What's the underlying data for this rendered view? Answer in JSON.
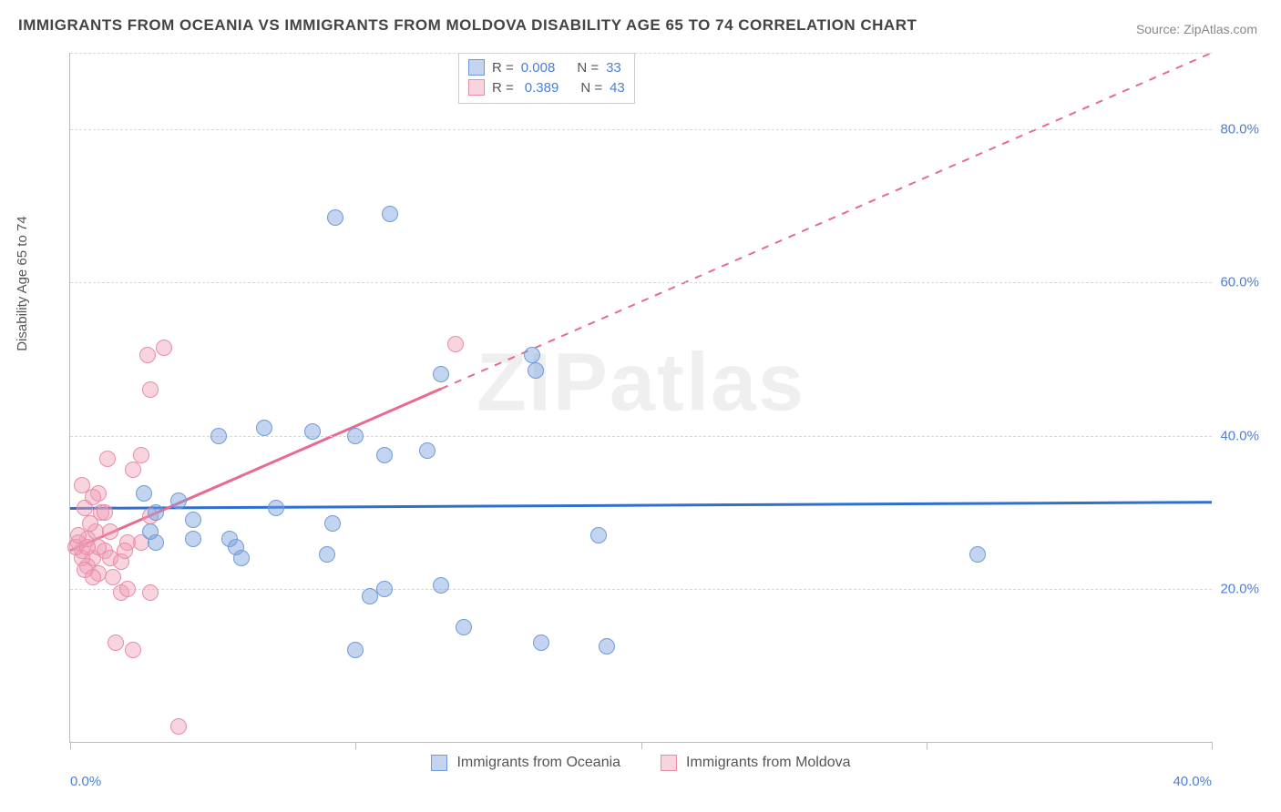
{
  "title": "IMMIGRANTS FROM OCEANIA VS IMMIGRANTS FROM MOLDOVA DISABILITY AGE 65 TO 74 CORRELATION CHART",
  "source": "Source: ZipAtlas.com",
  "ylabel": "Disability Age 65 to 74",
  "watermark": "ZIPatlas",
  "chart": {
    "type": "scatter",
    "xlim": [
      0,
      40
    ],
    "ylim": [
      0,
      90
    ],
    "xticks": [
      0,
      10,
      20,
      30,
      40
    ],
    "xtick_labels": [
      "0.0%",
      "",
      "",
      "",
      "40.0%"
    ],
    "yticks": [
      20,
      40,
      60,
      80
    ],
    "ytick_labels": [
      "20.0%",
      "40.0%",
      "60.0%",
      "80.0%"
    ],
    "grid_color": "#d8d8d8",
    "axis_color": "#bbbbbb",
    "background_color": "#ffffff",
    "xtick_label_color": "#4a7fd8",
    "ytick_label_color": "#4a7fd8",
    "point_radius": 9,
    "series": [
      {
        "name": "Immigrants from Oceania",
        "color_fill": "rgba(120,160,220,0.45)",
        "color_stroke": "#6f9cd8",
        "r": 0.008,
        "n": 33,
        "trend": {
          "y_at_xmin": 30.5,
          "y_at_xmax": 31.3,
          "color": "#2f6fd0",
          "width": 3,
          "dashed_after_x": null
        },
        "points": [
          [
            9.3,
            68.5
          ],
          [
            11.2,
            69.0
          ],
          [
            9.0,
            24.5
          ],
          [
            5.2,
            40.0
          ],
          [
            7.2,
            30.5
          ],
          [
            8.5,
            40.5
          ],
          [
            10.0,
            40.0
          ],
          [
            13.0,
            48.0
          ],
          [
            11.0,
            37.5
          ],
          [
            12.5,
            38.0
          ],
          [
            13.0,
            20.5
          ],
          [
            4.3,
            29.0
          ],
          [
            18.5,
            27.0
          ],
          [
            10.0,
            12.0
          ],
          [
            10.5,
            19.0
          ],
          [
            13.8,
            15.0
          ],
          [
            16.3,
            48.5
          ],
          [
            16.5,
            13.0
          ],
          [
            18.8,
            12.5
          ],
          [
            31.8,
            24.5
          ],
          [
            6.8,
            41.0
          ],
          [
            3.0,
            26.0
          ],
          [
            5.6,
            26.5
          ],
          [
            6.0,
            24.0
          ],
          [
            3.8,
            31.5
          ],
          [
            2.8,
            27.5
          ],
          [
            3.0,
            30.0
          ],
          [
            16.2,
            50.5
          ],
          [
            11.0,
            20.0
          ],
          [
            4.3,
            26.5
          ],
          [
            5.8,
            25.5
          ],
          [
            2.6,
            32.5
          ],
          [
            9.2,
            28.5
          ]
        ]
      },
      {
        "name": "Immigrants from Moldova",
        "color_fill": "rgba(240,160,185,0.45)",
        "color_stroke": "#e88ca8",
        "r": 0.389,
        "n": 43,
        "trend": {
          "y_at_xmin": 25.0,
          "y_at_xmax": 90.0,
          "color": "#e86a8f",
          "width": 3,
          "dashed_after_x": 13.0
        },
        "points": [
          [
            0.4,
            25.0
          ],
          [
            0.6,
            26.5
          ],
          [
            0.8,
            24.0
          ],
          [
            0.9,
            27.5
          ],
          [
            0.5,
            30.5
          ],
          [
            0.6,
            23.0
          ],
          [
            1.0,
            22.0
          ],
          [
            1.2,
            25.0
          ],
          [
            1.4,
            24.0
          ],
          [
            0.4,
            33.5
          ],
          [
            0.8,
            21.5
          ],
          [
            1.8,
            23.5
          ],
          [
            1.4,
            27.5
          ],
          [
            1.0,
            25.5
          ],
          [
            2.2,
            35.5
          ],
          [
            2.7,
            50.5
          ],
          [
            3.3,
            51.5
          ],
          [
            2.8,
            46.0
          ],
          [
            1.3,
            37.0
          ],
          [
            1.1,
            30.0
          ],
          [
            1.5,
            21.5
          ],
          [
            2.5,
            37.5
          ],
          [
            1.8,
            19.5
          ],
          [
            2.0,
            26.0
          ],
          [
            2.2,
            12.0
          ],
          [
            2.0,
            20.0
          ],
          [
            1.6,
            13.0
          ],
          [
            0.7,
            28.5
          ],
          [
            2.8,
            29.5
          ],
          [
            2.8,
            19.5
          ],
          [
            0.3,
            26.0
          ],
          [
            0.4,
            24.0
          ],
          [
            0.2,
            25.5
          ],
          [
            1.0,
            32.5
          ],
          [
            0.3,
            27.0
          ],
          [
            13.5,
            52.0
          ],
          [
            0.6,
            25.5
          ],
          [
            1.2,
            30.0
          ],
          [
            0.8,
            32.0
          ],
          [
            3.8,
            2.0
          ],
          [
            1.9,
            25.0
          ],
          [
            2.5,
            26.0
          ],
          [
            0.5,
            22.5
          ]
        ]
      }
    ]
  },
  "legend_corr_labels": {
    "r": "R =",
    "n": "N ="
  },
  "x_legend": {
    "items": [
      "Immigrants from Oceania",
      "Immigrants from Moldova"
    ]
  }
}
